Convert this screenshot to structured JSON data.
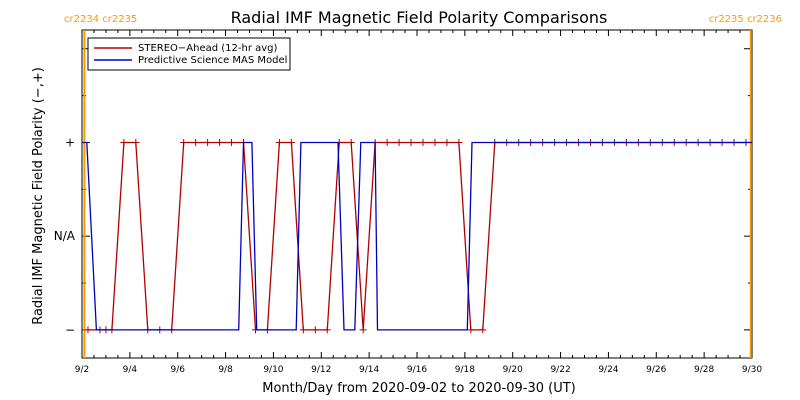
{
  "chart_data": {
    "type": "line",
    "title": "Radial IMF Magnetic Field Polarity Comparisons",
    "xlabel": "Month/Day from 2020-09-02 to 2020-09-30 (UT)",
    "ylabel": "Radial IMF Magnetic Field Polarity (−,+)",
    "xlim": [
      0,
      28
    ],
    "ylim": [
      -2.3,
      1.2
    ],
    "x_ticks": [
      {
        "day": 0,
        "label": "9/2"
      },
      {
        "day": 2,
        "label": "9/4"
      },
      {
        "day": 4,
        "label": "9/6"
      },
      {
        "day": 6,
        "label": "9/8"
      },
      {
        "day": 8,
        "label": "9/10"
      },
      {
        "day": 10,
        "label": "9/12"
      },
      {
        "day": 12,
        "label": "9/14"
      },
      {
        "day": 14,
        "label": "9/16"
      },
      {
        "day": 16,
        "label": "9/18"
      },
      {
        "day": 18,
        "label": "9/20"
      },
      {
        "day": 20,
        "label": "9/22"
      },
      {
        "day": 22,
        "label": "9/24"
      },
      {
        "day": 24,
        "label": "9/26"
      },
      {
        "day": 26,
        "label": "9/28"
      },
      {
        "day": 28,
        "label": "9/30"
      }
    ],
    "y_ticks": [
      {
        "value": 0,
        "label": "+"
      },
      {
        "value": -1,
        "label": "N/A"
      },
      {
        "value": -2,
        "label": "−"
      }
    ],
    "grid": false,
    "legend_position": "top-left",
    "series": [
      {
        "name": "STEREO−Ahead (12-hr avg)",
        "color": "#b00000",
        "markers": "+",
        "x": [
          0.25,
          0.75,
          1.0,
          1.25,
          1.75,
          2.25,
          2.75,
          3.25,
          3.75,
          4.25,
          4.75,
          5.25,
          5.75,
          6.25,
          6.75,
          7.25,
          7.75,
          8.25,
          8.75,
          9.25,
          9.75,
          10.25,
          10.75,
          11.25,
          11.75,
          12.25,
          12.75,
          13.25,
          13.75,
          14.25,
          14.75,
          15.25,
          15.75,
          16.25,
          16.75,
          17.25,
          17.75,
          18.25,
          18.75,
          19.25,
          19.75,
          20.25,
          20.75,
          21.25,
          21.75,
          22.25,
          22.75,
          23.25,
          23.75,
          24.25,
          24.75,
          25.25,
          25.75,
          26.25,
          26.75,
          27.25,
          27.75
        ],
        "y": [
          -2,
          -2,
          -2,
          -2,
          0,
          0,
          -2,
          -2,
          -2,
          0,
          0,
          0,
          0,
          0,
          0,
          -2,
          -2,
          0,
          0,
          -2,
          -2,
          -2,
          0,
          0,
          -2,
          0,
          0,
          0,
          0,
          0,
          0,
          0,
          0,
          -2,
          -2,
          0,
          0,
          0,
          0,
          0,
          0,
          0,
          0,
          0,
          0,
          0,
          0,
          0,
          0,
          0,
          0,
          0,
          0,
          0,
          0,
          0,
          0
        ]
      },
      {
        "name": "Predictive Science MAS Model",
        "color": "#0000c0",
        "x": [
          0.05,
          0.2,
          0.6,
          6.55,
          6.75,
          7.1,
          7.3,
          8.95,
          9.15,
          10.7,
          10.95,
          11.4,
          11.65,
          12.25,
          12.35,
          16.1,
          16.3,
          28.0
        ],
        "y": [
          0,
          0,
          -2,
          -2,
          0,
          0,
          -2,
          -2,
          0,
          0,
          -2,
          -2,
          0,
          0,
          -2,
          -2,
          0,
          0
        ]
      }
    ],
    "annotations": [
      {
        "day": 0.1,
        "label": "cr2234 cr2235",
        "color": "#ff9900",
        "side": "left"
      },
      {
        "day": 27.95,
        "label": "cr2235 cr2236",
        "color": "#ff9900",
        "side": "right"
      }
    ]
  }
}
